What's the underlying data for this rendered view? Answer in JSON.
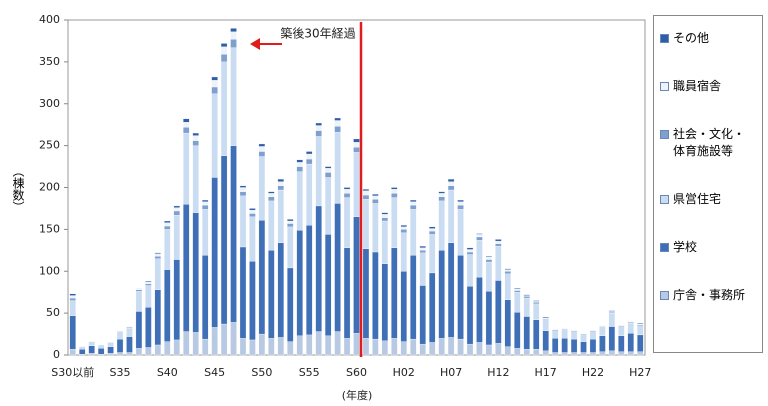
{
  "chart_data": {
    "type": "stacked_bar",
    "x_label": "(年度)",
    "y_label": "（棟数）",
    "annotation": "築後30年経過",
    "categories": [
      "S30以前",
      null,
      null,
      null,
      null,
      "S35",
      null,
      null,
      null,
      null,
      "S40",
      null,
      null,
      null,
      null,
      "S45",
      null,
      null,
      null,
      null,
      "S50",
      null,
      null,
      null,
      null,
      "S55",
      null,
      null,
      null,
      null,
      "S60",
      null,
      null,
      null,
      null,
      "H02",
      null,
      null,
      null,
      null,
      "H07",
      null,
      null,
      null,
      null,
      "H12",
      null,
      null,
      null,
      null,
      "H17",
      null,
      null,
      null,
      null,
      "H22",
      null,
      null,
      null,
      null,
      "H27"
    ],
    "ylim": [
      0,
      400
    ],
    "yticks": [
      0,
      50,
      100,
      150,
      200,
      250,
      300,
      350,
      400
    ],
    "series": [
      {
        "name": "庁舎・事務所",
        "color": "#b7c9e3",
        "values": [
          7,
          1,
          2,
          1,
          2,
          3,
          3,
          8,
          9,
          12,
          16,
          18,
          28,
          27,
          19,
          33,
          37,
          39,
          20,
          18,
          25,
          20,
          21,
          16,
          23,
          24,
          28,
          23,
          28,
          20,
          26,
          20,
          19,
          17,
          20,
          16,
          19,
          13,
          15,
          20,
          21,
          19,
          13,
          15,
          12,
          14,
          10,
          8,
          7,
          7,
          5,
          3,
          3,
          3,
          3,
          3,
          4,
          5,
          4,
          4,
          4
        ]
      },
      {
        "name": "学校",
        "color": "#3f6fb6",
        "values": [
          40,
          6,
          9,
          7,
          8,
          16,
          19,
          44,
          48,
          66,
          86,
          96,
          152,
          143,
          100,
          179,
          201,
          211,
          109,
          94,
          136,
          105,
          113,
          88,
          126,
          131,
          150,
          121,
          153,
          108,
          139,
          107,
          104,
          92,
          108,
          84,
          100,
          70,
          83,
          105,
          113,
          100,
          69,
          78,
          64,
          75,
          56,
          43,
          39,
          35,
          24,
          17,
          17,
          16,
          13,
          16,
          19,
          29,
          19,
          22,
          20
        ]
      },
      {
        "name": "県営住宅",
        "color": "#c9dcf2",
        "values": [
          18,
          3,
          5,
          4,
          5,
          8,
          10,
          24,
          26,
          37,
          48,
          53,
          85,
          80,
          55,
          100,
          112,
          117,
          61,
          53,
          76,
          59,
          63,
          49,
          70,
          73,
          83,
          68,
          85,
          60,
          77,
          59,
          58,
          51,
          60,
          46,
          55,
          39,
          46,
          59,
          63,
          55,
          38,
          44,
          35,
          41,
          31,
          24,
          22,
          19,
          13,
          9,
          10,
          9,
          8,
          9,
          10,
          16,
          11,
          12,
          11
        ]
      },
      {
        "name": "社会・文化・体育施設等",
        "color": "#7f9fcf",
        "values": [
          3,
          0,
          0,
          0,
          0,
          1,
          1,
          2,
          2,
          3,
          4,
          5,
          7,
          6,
          5,
          8,
          9,
          10,
          5,
          4,
          6,
          5,
          5,
          4,
          6,
          6,
          7,
          6,
          7,
          5,
          6,
          5,
          5,
          4,
          5,
          4,
          5,
          3,
          4,
          5,
          5,
          5,
          3,
          4,
          3,
          3,
          3,
          2,
          2,
          2,
          1,
          1,
          1,
          1,
          1,
          1,
          1,
          1,
          1,
          1,
          1
        ]
      },
      {
        "name": "職員宿舎",
        "color": "#eef3fa",
        "values": [
          3,
          0,
          0,
          0,
          0,
          0,
          1,
          2,
          2,
          3,
          4,
          4,
          6,
          6,
          4,
          8,
          9,
          9,
          5,
          4,
          6,
          4,
          5,
          3,
          5,
          6,
          6,
          5,
          7,
          5,
          6,
          5,
          4,
          4,
          5,
          3,
          4,
          3,
          3,
          4,
          5,
          4,
          3,
          3,
          3,
          3,
          2,
          2,
          1,
          1,
          1,
          1,
          1,
          1,
          0,
          1,
          1,
          1,
          1,
          1,
          1
        ]
      },
      {
        "name": "その他",
        "color": "#2f5ea8",
        "values": [
          2,
          0,
          0,
          0,
          0,
          0,
          0,
          0,
          1,
          1,
          2,
          2,
          4,
          3,
          2,
          4,
          4,
          4,
          2,
          2,
          3,
          2,
          3,
          2,
          3,
          3,
          3,
          2,
          3,
          2,
          4,
          2,
          2,
          2,
          2,
          2,
          2,
          2,
          2,
          2,
          3,
          2,
          2,
          1,
          1,
          2,
          1,
          1,
          1,
          1,
          1,
          0,
          0,
          0,
          0,
          0,
          0,
          1,
          0,
          0,
          1
        ]
      }
    ]
  }
}
